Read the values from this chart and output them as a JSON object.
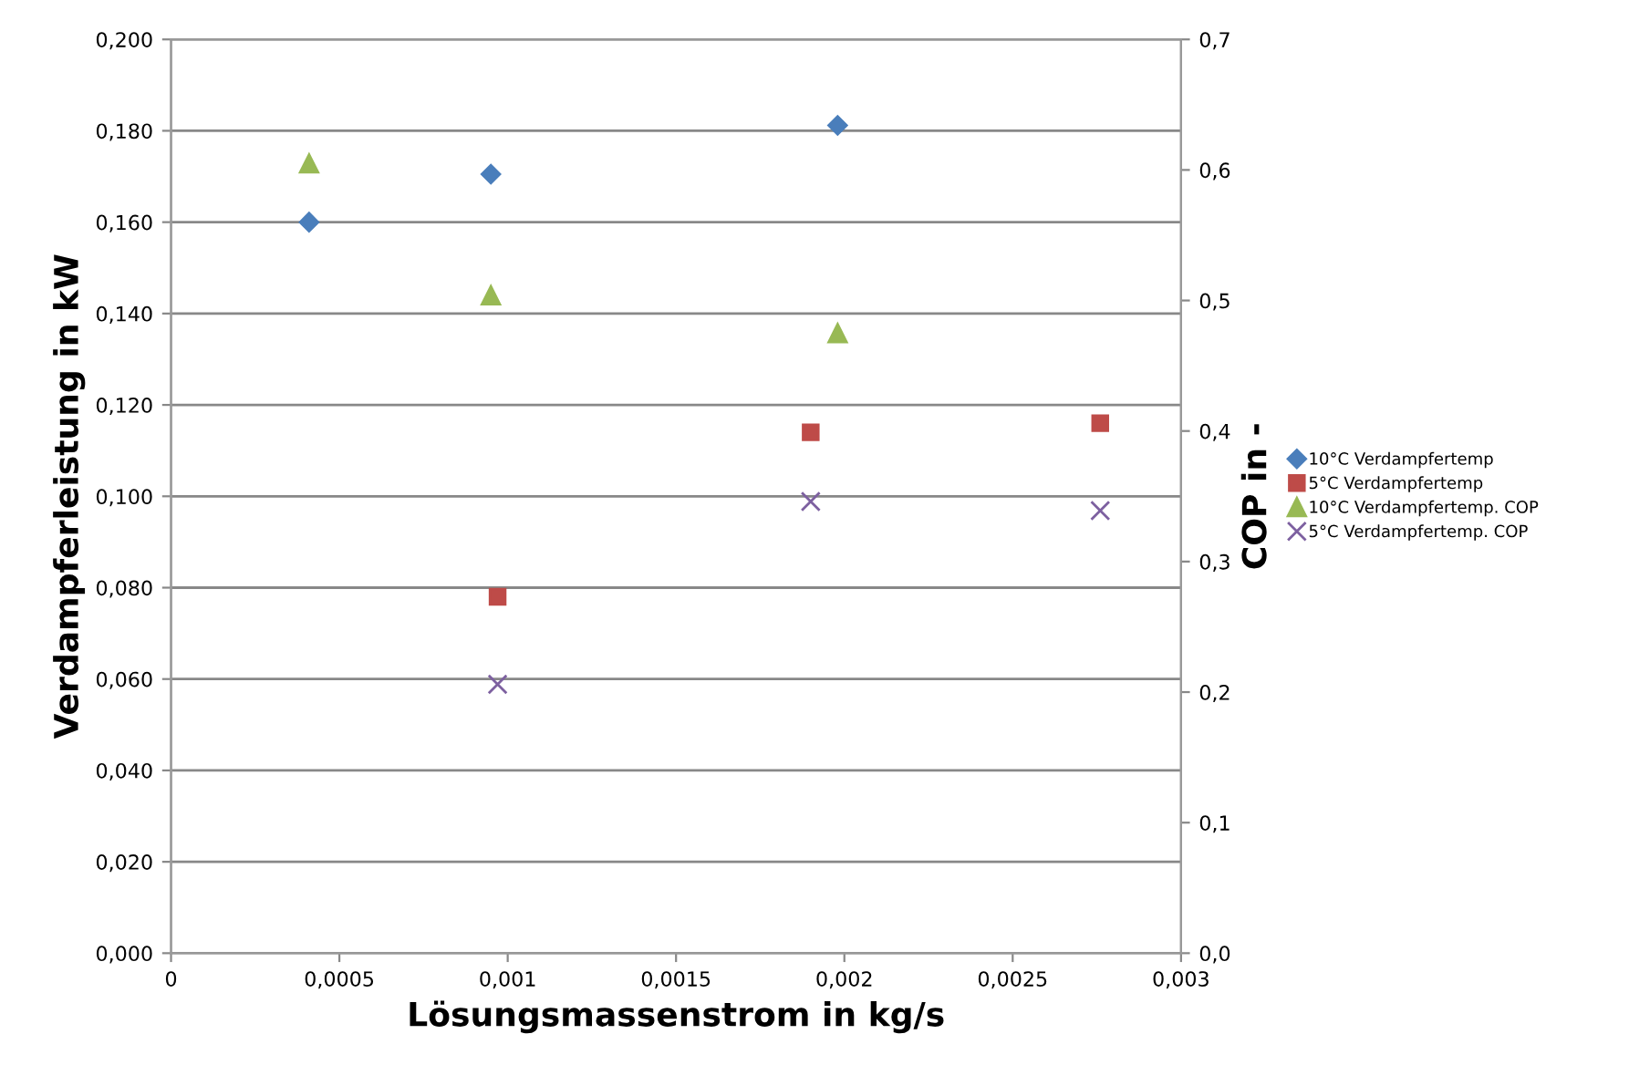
{
  "chart_data": {
    "type": "scatter",
    "xlabel": "Lösungsmassenstrom in kg/s",
    "ylabel": "Verdampferleistung in kW",
    "y2label": "COP in -",
    "xlim": [
      0,
      0.003
    ],
    "xticks": [
      0,
      {
        "value": 0.0005,
        "label": "0,0005"
      },
      {
        "value": 0.001,
        "label": "0,001"
      },
      {
        "value": 0.0015,
        "label": "0,0015"
      },
      {
        "value": 0.002,
        "label": "0,002"
      },
      {
        "value": 0.0025,
        "label": "0,0025"
      },
      {
        "value": 0.003,
        "label": "0,003"
      }
    ],
    "ylim": [
      0,
      0.2
    ],
    "yticks": [
      {
        "value": 0,
        "label": "0,000"
      },
      {
        "value": 0.02,
        "label": "0,020"
      },
      {
        "value": 0.04,
        "label": "0,040"
      },
      {
        "value": 0.06,
        "label": "0,060"
      },
      {
        "value": 0.08,
        "label": "0,080"
      },
      {
        "value": 0.1,
        "label": "0,100"
      },
      {
        "value": 0.12,
        "label": "0,120"
      },
      {
        "value": 0.14,
        "label": "0,140"
      },
      {
        "value": 0.16,
        "label": "0,160"
      },
      {
        "value": 0.18,
        "label": "0,180"
      },
      {
        "value": 0.2,
        "label": "0,200"
      }
    ],
    "y2lim": [
      0,
      0.7
    ],
    "y2ticks": [
      {
        "value": 0,
        "label": "0,0"
      },
      {
        "value": 0.1,
        "label": "0,1"
      },
      {
        "value": 0.2,
        "label": "0,2"
      },
      {
        "value": 0.3,
        "label": "0,3"
      },
      {
        "value": 0.4,
        "label": "0,4"
      },
      {
        "value": 0.5,
        "label": "0,5"
      },
      {
        "value": 0.6,
        "label": "0,6"
      },
      {
        "value": 0.7,
        "label": "0,7"
      }
    ],
    "grid": "y",
    "legend": "right",
    "series": [
      {
        "name": "10°C Verdampfertemp",
        "color": "#4a7ebb",
        "marker": "diamond",
        "x": [
          0.00041,
          0.00095,
          0.00198
        ],
        "values": [
          0.16,
          0.1705,
          0.1812
        ]
      },
      {
        "name": "5°C Verdampfertemp",
        "color": "#be4b48",
        "marker": "square",
        "x": [
          0.00097,
          0.0019,
          0.00276
        ],
        "values": [
          0.078,
          0.114,
          0.116
        ]
      },
      {
        "name": "10°C Verdampfertemp. COP",
        "color": "#98b954",
        "marker": "triangle",
        "axis": "y2",
        "x": [
          0.00041,
          0.00095,
          0.00198
        ],
        "values": [
          0.605,
          0.504,
          0.475
        ]
      },
      {
        "name": "5°C Verdampfertemp. COP",
        "color": "#7d60a0",
        "marker": "cross",
        "axis": "y2",
        "x": [
          0.00097,
          0.0019,
          0.00276
        ],
        "values": [
          0.206,
          0.346,
          0.339
        ]
      }
    ]
  }
}
